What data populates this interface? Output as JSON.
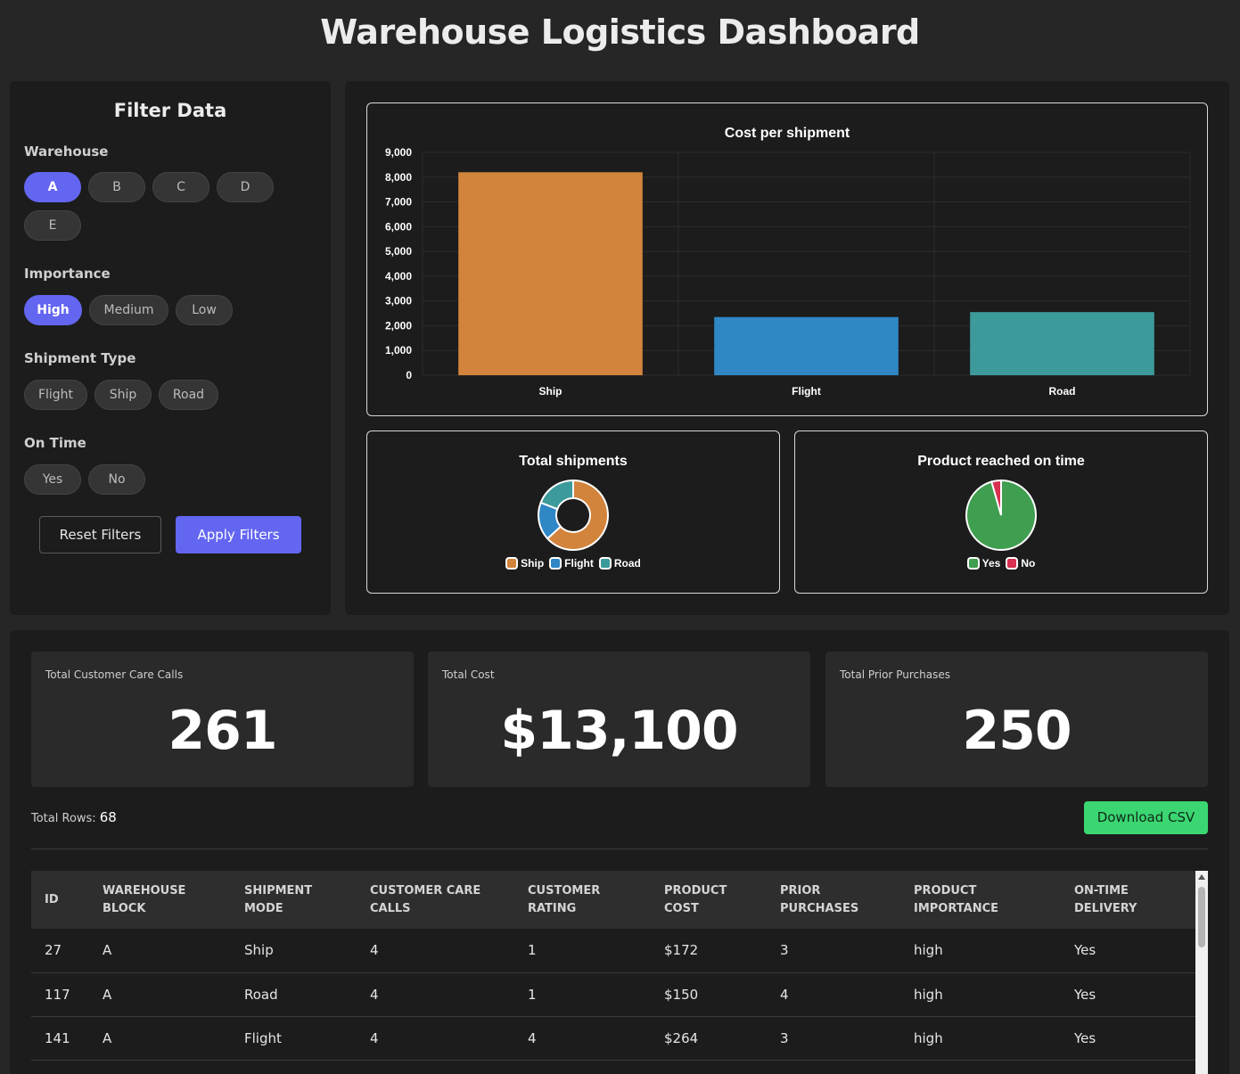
{
  "title": "Warehouse Logistics Dashboard",
  "filters": {
    "title": "Filter Data",
    "warehouse": {
      "label": "Warehouse",
      "options": [
        "A",
        "B",
        "C",
        "D",
        "E"
      ],
      "selected": "A"
    },
    "importance": {
      "label": "Importance",
      "options": [
        "High",
        "Medium",
        "Low"
      ],
      "selected": "High"
    },
    "shipment_type": {
      "label": "Shipment Type",
      "options": [
        "Flight",
        "Ship",
        "Road"
      ]
    },
    "on_time": {
      "label": "On Time",
      "options": [
        "Yes",
        "No"
      ]
    },
    "reset_label": "Reset Filters",
    "apply_label": "Apply Filters",
    "active_color": "#6366f1"
  },
  "chart_data": [
    {
      "type": "bar",
      "title": "Cost per shipment",
      "categories": [
        "Ship",
        "Flight",
        "Road"
      ],
      "values": [
        8200,
        2350,
        2550
      ],
      "colors": [
        "#d2843c",
        "#2f87c6",
        "#3d9a9a"
      ],
      "ylim": [
        0,
        9000
      ],
      "yticks": [
        0,
        1000,
        2000,
        3000,
        4000,
        5000,
        6000,
        7000,
        8000,
        9000
      ],
      "ytick_labels": [
        "0",
        "1,000",
        "2,000",
        "3,000",
        "4,000",
        "5,000",
        "6,000",
        "7,000",
        "8,000",
        "9,000"
      ],
      "grid": true,
      "legend": "none"
    },
    {
      "type": "pie",
      "title": "Total shipments",
      "categories": [
        "Ship",
        "Flight",
        "Road"
      ],
      "values": [
        43,
        12,
        13
      ],
      "colors": [
        "#d2843c",
        "#2f87c6",
        "#3d9a9a"
      ],
      "donut": true,
      "legend": "bottom"
    },
    {
      "type": "pie",
      "title": "Product reached on time",
      "categories": [
        "Yes",
        "No"
      ],
      "values": [
        65,
        3
      ],
      "colors": [
        "#3f9e4f",
        "#d8304f"
      ],
      "donut": false,
      "legend": "bottom"
    }
  ],
  "kpis": [
    {
      "label": "Total Customer Care Calls",
      "value": "261"
    },
    {
      "label": "Total Cost",
      "value": "$13,100"
    },
    {
      "label": "Total Prior Purchases",
      "value": "250"
    }
  ],
  "summary": {
    "rows_label": "Total Rows:",
    "rows_value": "68",
    "download_label": "Download CSV"
  },
  "table": {
    "columns": [
      "ID",
      "Warehouse Block",
      "Shipment Mode",
      "Customer Care Calls",
      "Customer Rating",
      "Product Cost",
      "Prior Purchases",
      "Product Importance",
      "On-Time Delivery"
    ],
    "rows": [
      [
        "27",
        "A",
        "Ship",
        "4",
        "1",
        "$172",
        "3",
        "high",
        "Yes"
      ],
      [
        "117",
        "A",
        "Road",
        "4",
        "1",
        "$150",
        "4",
        "high",
        "Yes"
      ],
      [
        "141",
        "A",
        "Flight",
        "4",
        "4",
        "$264",
        "3",
        "high",
        "Yes"
      ]
    ]
  }
}
